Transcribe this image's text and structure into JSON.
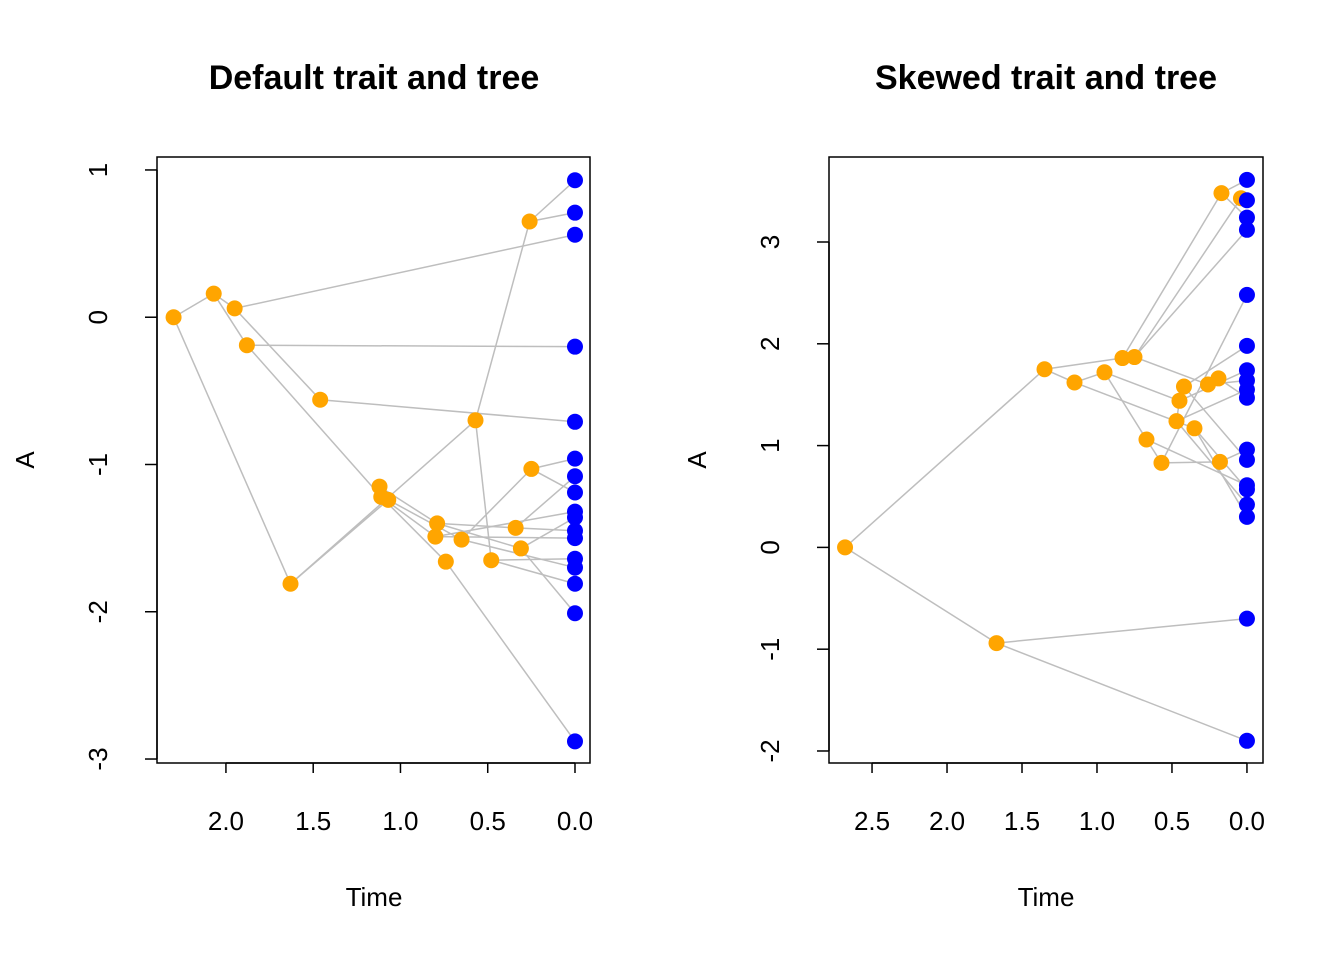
{
  "chart_data": [
    {
      "type": "traitgram",
      "title": "Default trait and tree",
      "x_label": "Time",
      "y_label": "A",
      "xlim": [
        2.395,
        -0.086
      ],
      "ylim": [
        -3.027,
        1.088
      ],
      "xticks": [
        {
          "value": 2,
          "label": "2.0"
        },
        1.5,
        {
          "value": 1,
          "label": "1.0"
        },
        0.5,
        {
          "value": 0,
          "label": "0.0"
        }
      ],
      "yticks": [
        -3,
        -2,
        -1,
        0,
        1
      ],
      "edge_color": "#bebebe",
      "nodes": {
        "color": "orange",
        "x": [
          2.3,
          2.07,
          1.95,
          1.88,
          1.46,
          1.63,
          1.12,
          1.11,
          1.07,
          0.79,
          0.8,
          0.65,
          0.74,
          0.57,
          0.26,
          0.25,
          0.34,
          0.48,
          0.31
        ],
        "y": [
          0,
          0.16,
          0.06,
          -0.19,
          -0.56,
          -1.81,
          -1.15,
          -1.22,
          -1.24,
          -1.4,
          -1.49,
          -1.51,
          -1.66,
          -0.7,
          0.65,
          -1.03,
          -1.43,
          -1.65,
          -1.57
        ]
      },
      "tips": {
        "color": "blue",
        "x": [
          0,
          0,
          0,
          0,
          0,
          0,
          0,
          0,
          0,
          0,
          0,
          0,
          0,
          0,
          0,
          0,
          0
        ],
        "y": [
          0.93,
          0.71,
          0.56,
          -0.2,
          -0.71,
          -0.96,
          -1.08,
          -1.19,
          -1.32,
          -1.36,
          -1.45,
          -1.5,
          -1.64,
          -1.7,
          -1.81,
          -2.01,
          -2.88
        ]
      },
      "edges": [
        [
          0,
          1
        ],
        [
          0,
          5
        ],
        [
          1,
          2
        ],
        [
          1,
          3
        ],
        [
          2,
          21
        ],
        [
          2,
          4
        ],
        [
          3,
          22
        ],
        [
          3,
          7
        ],
        [
          4,
          23
        ],
        [
          5,
          13
        ],
        [
          5,
          8
        ],
        [
          8,
          6
        ],
        [
          6,
          9
        ],
        [
          7,
          12
        ],
        [
          7,
          10
        ],
        [
          8,
          11
        ],
        [
          9,
          16
        ],
        [
          9,
          18
        ],
        [
          13,
          14
        ],
        [
          13,
          17
        ],
        [
          14,
          19
        ],
        [
          14,
          20
        ],
        [
          11,
          15
        ],
        [
          15,
          24
        ],
        [
          15,
          26
        ],
        [
          16,
          25
        ],
        [
          16,
          29
        ],
        [
          17,
          31
        ],
        [
          17,
          33
        ],
        [
          18,
          28
        ],
        [
          18,
          34
        ],
        [
          10,
          30
        ],
        [
          10,
          27
        ],
        [
          11,
          32
        ],
        [
          12,
          35
        ]
      ]
    },
    {
      "type": "traitgram",
      "title": "Skewed trait and tree",
      "x_label": "Time",
      "y_label": "A",
      "xlim": [
        2.787,
        -0.107
      ],
      "ylim": [
        -2.118,
        3.835
      ],
      "xticks": [
        2.5,
        {
          "value": 2,
          "label": "2.0"
        },
        1.5,
        {
          "value": 1,
          "label": "1.0"
        },
        0.5,
        {
          "value": 0,
          "label": "0.0"
        }
      ],
      "yticks": [
        -2,
        -1,
        0,
        1,
        2,
        3
      ],
      "edge_color": "#bebebe",
      "nodes": {
        "color": "orange",
        "x": [
          2.68,
          1.67,
          1.35,
          1.15,
          0.95,
          0.83,
          0.75,
          0.67,
          0.57,
          0.47,
          0.45,
          0.42,
          0.35,
          0.26,
          0.19,
          0.18,
          0.17,
          0.04
        ],
        "y": [
          0,
          -0.94,
          1.75,
          1.62,
          1.72,
          1.86,
          1.87,
          1.06,
          0.83,
          1.24,
          1.44,
          1.58,
          1.17,
          1.6,
          1.66,
          0.84,
          3.48,
          3.43
        ]
      },
      "tips": {
        "color": "blue",
        "x": [
          0,
          0,
          0,
          0,
          0,
          0,
          0,
          0,
          0,
          0,
          0,
          0,
          0,
          0,
          0,
          0,
          0,
          0
        ],
        "y": [
          3.61,
          3.41,
          3.24,
          3.12,
          2.48,
          1.98,
          1.74,
          1.64,
          1.55,
          1.47,
          0.96,
          0.86,
          0.61,
          0.57,
          0.42,
          0.3,
          -0.7,
          -1.9
        ]
      },
      "edges": [
        [
          0,
          1
        ],
        [
          0,
          2
        ],
        [
          2,
          3
        ],
        [
          2,
          5
        ],
        [
          3,
          4
        ],
        [
          3,
          12
        ],
        [
          4,
          7
        ],
        [
          4,
          10
        ],
        [
          5,
          16
        ],
        [
          5,
          6
        ],
        [
          6,
          17
        ],
        [
          6,
          13
        ],
        [
          7,
          8
        ],
        [
          8,
          15
        ],
        [
          10,
          9
        ],
        [
          10,
          11
        ],
        [
          13,
          14
        ],
        [
          16,
          18
        ],
        [
          17,
          19
        ],
        [
          16,
          20
        ],
        [
          6,
          21
        ],
        [
          8,
          22
        ],
        [
          11,
          23
        ],
        [
          10,
          24
        ],
        [
          13,
          25
        ],
        [
          9,
          26
        ],
        [
          14,
          27
        ],
        [
          15,
          28
        ],
        [
          11,
          29
        ],
        [
          7,
          30
        ],
        [
          12,
          31
        ],
        [
          9,
          32
        ],
        [
          12,
          33
        ],
        [
          1,
          34
        ],
        [
          1,
          35
        ]
      ]
    }
  ]
}
